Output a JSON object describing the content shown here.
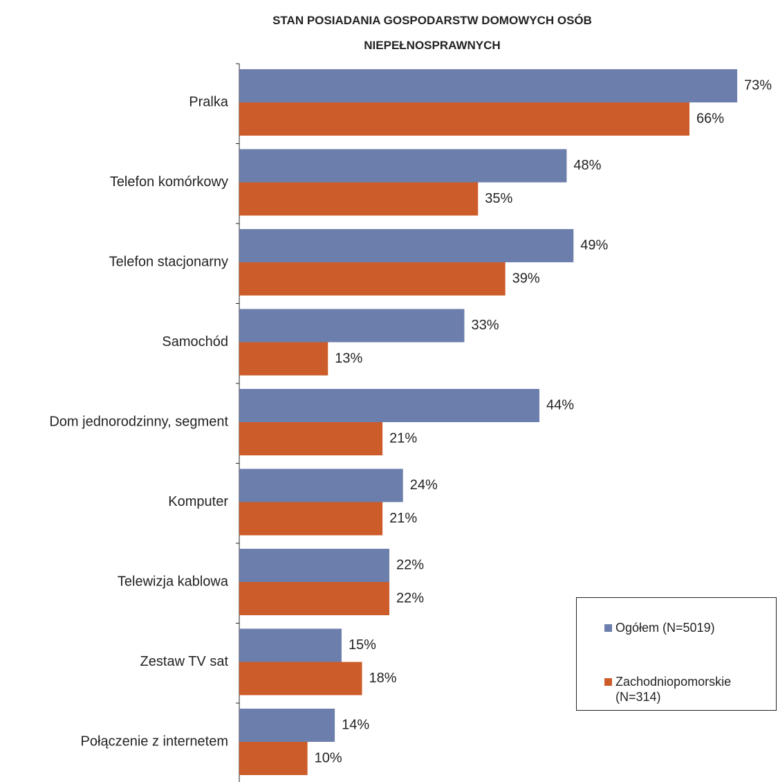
{
  "chart_data": {
    "type": "barh",
    "title": "STAN POSIADANIA GOSPODARSTW DOMOWYCH OSÓB NIEPEŁNOSPRAWNYCH",
    "categories": [
      "Pralka",
      "Telefon komórkowy",
      "Telefon stacjonarny",
      "Samochód",
      "Dom jednorodzinny, segment",
      "Komputer",
      "Telewizja kablowa",
      "Zestaw TV sat",
      "Połączenie z internetem"
    ],
    "series": [
      {
        "name": "Ogółem (N=5019)",
        "color": "#6c7eab",
        "values": [
          73,
          48,
          49,
          33,
          44,
          24,
          22,
          15,
          14
        ],
        "value_labels": [
          "73%",
          "48%",
          "49%",
          "33%",
          "44%",
          "24%",
          "22%",
          "15%",
          "14%"
        ]
      },
      {
        "name": "Zachodniopomorskie (N=314)",
        "color": "#cc5c2a",
        "values": [
          66,
          35,
          39,
          13,
          21,
          21,
          22,
          18,
          10
        ],
        "value_labels": [
          "66%",
          "35%",
          "39%",
          "13%",
          "21%",
          "21%",
          "22%",
          "18%",
          "10%"
        ]
      }
    ],
    "legend": "right"
  }
}
